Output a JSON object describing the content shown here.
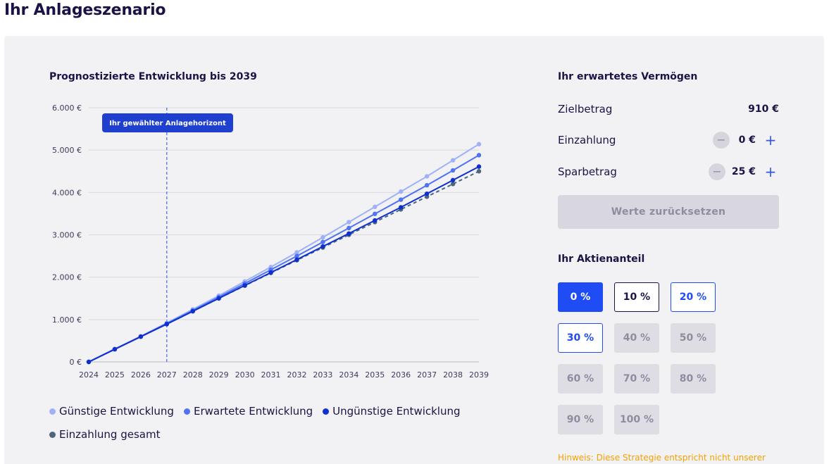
{
  "page_title": "Ihr Anlageszenario",
  "chart_data": {
    "type": "line",
    "title": "Prognostizierte Entwicklung bis 2039",
    "categories": [
      "2024",
      "2025",
      "2026",
      "2027",
      "2028",
      "2029",
      "2030",
      "2031",
      "2032",
      "2033",
      "2034",
      "2035",
      "2036",
      "2037",
      "2038",
      "2039"
    ],
    "y_ticks": [
      "0 €",
      "1.000 €",
      "2.000 €",
      "3.000 €",
      "4.000 €",
      "5.000 €",
      "6.000 €"
    ],
    "ylim": [
      0,
      6000
    ],
    "grid": true,
    "horizon_year": "2027",
    "horizon_label": "Ihr gewählter Anlagehorizont",
    "series": [
      {
        "name": "Günstige Entwicklung",
        "color": "#9fb2f7",
        "style": "solid",
        "values": [
          0,
          305,
          605,
          920,
          1240,
          1565,
          1900,
          2240,
          2585,
          2940,
          3300,
          3660,
          4020,
          4380,
          4760,
          5140
        ]
      },
      {
        "name": "Erwartete Entwicklung",
        "color": "#4f73f2",
        "style": "solid",
        "values": [
          0,
          302,
          600,
          905,
          1215,
          1530,
          1850,
          2175,
          2500,
          2830,
          3160,
          3495,
          3830,
          4170,
          4520,
          4880
        ]
      },
      {
        "name": "Ungünstige Entwicklung",
        "color": "#0f2fcf",
        "style": "solid",
        "values": [
          0,
          298,
          595,
          892,
          1195,
          1500,
          1805,
          2110,
          2415,
          2725,
          3030,
          3340,
          3650,
          3970,
          4290,
          4610
        ]
      },
      {
        "name": "Einzahlung gesamt",
        "color": "#4c6680",
        "style": "dashed",
        "values": [
          0,
          300,
          600,
          900,
          1200,
          1500,
          1800,
          2100,
          2400,
          2700,
          3000,
          3300,
          3600,
          3900,
          4200,
          4500
        ]
      }
    ]
  },
  "summary": {
    "title": "Ihr erwartetes Vermögen",
    "target_label": "Zielbetrag",
    "target_value": "910 €",
    "deposit_label": "Einzahlung",
    "deposit_value": "0 €",
    "savings_label": "Sparbetrag",
    "savings_value": "25 €",
    "minus_icon": "−",
    "plus_icon": "+",
    "reset_label": "Werte zurücksetzen"
  },
  "share": {
    "title": "Ihr Aktienanteil",
    "options": [
      {
        "label": "0 %",
        "state": "selected"
      },
      {
        "label": "10 %",
        "state": "outlined-dark"
      },
      {
        "label": "20 %",
        "state": "outlined-blue"
      },
      {
        "label": "30 %",
        "state": "outlined-blue"
      },
      {
        "label": "40 %",
        "state": "disabled"
      },
      {
        "label": "50 %",
        "state": "disabled"
      },
      {
        "label": "60 %",
        "state": "disabled"
      },
      {
        "label": "70 %",
        "state": "disabled"
      },
      {
        "label": "80 %",
        "state": "disabled"
      },
      {
        "label": "90 %",
        "state": "disabled"
      },
      {
        "label": "100 %",
        "state": "disabled"
      }
    ]
  },
  "hint": "Hinweis: Diese Strategie entspricht nicht unserer"
}
